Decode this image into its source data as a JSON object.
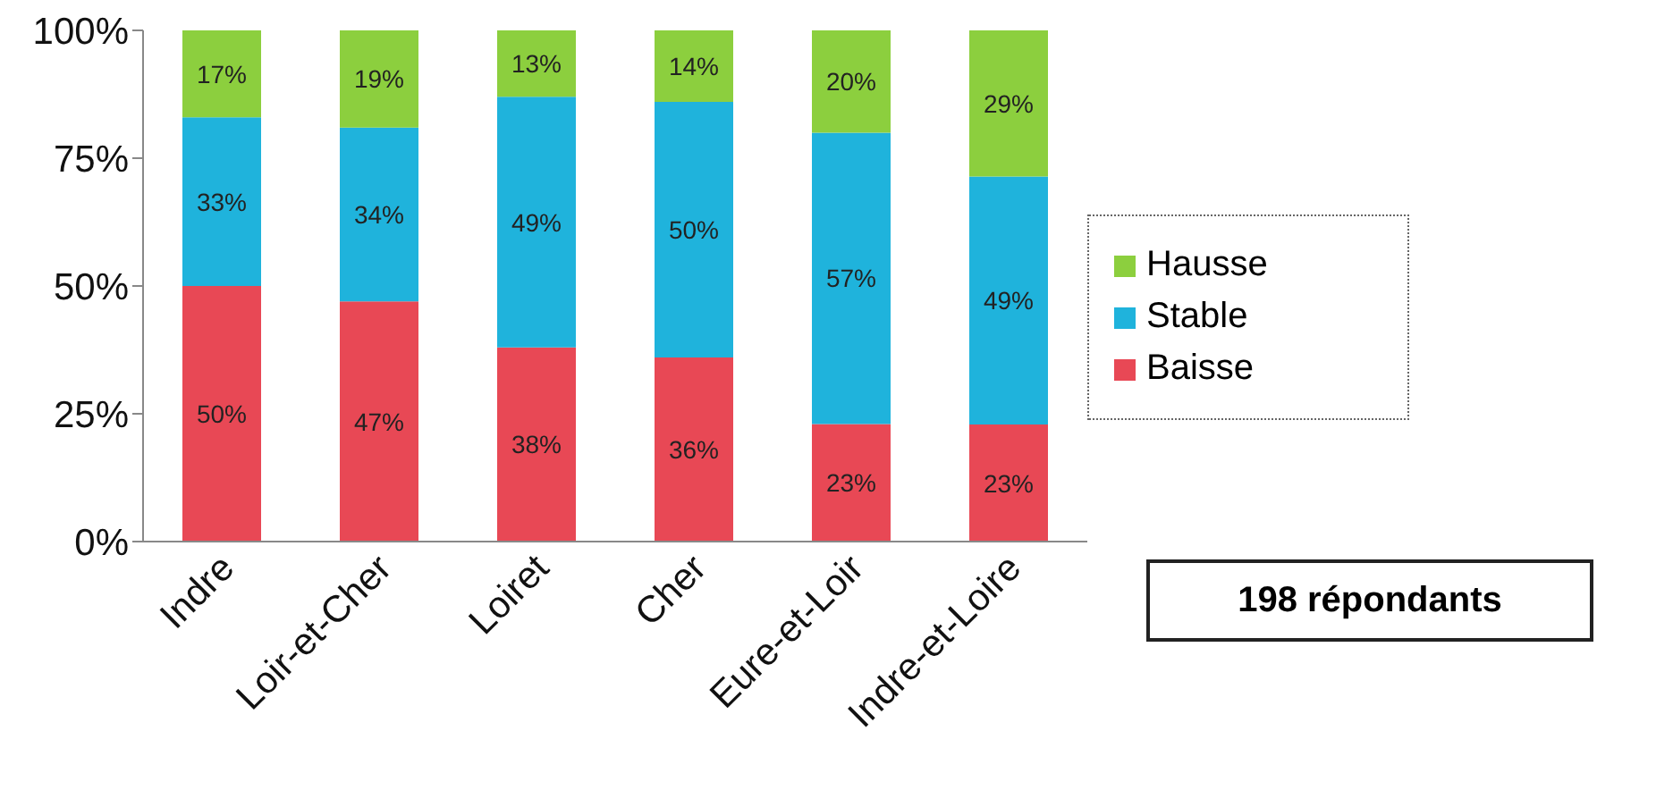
{
  "chart_data": {
    "type": "bar",
    "stacked": true,
    "categories": [
      "Indre",
      "Loir-et-Cher",
      "Loiret",
      "Cher",
      "Eure-et-Loir",
      "Indre-et-Loire"
    ],
    "series": [
      {
        "name": "Baisse",
        "color": "#e84855",
        "values": [
          50,
          47,
          38,
          36,
          23,
          22.9
        ],
        "value_labels": [
          "50%",
          "47%",
          "38%",
          "36%",
          "23%",
          "23%"
        ]
      },
      {
        "name": "Stable",
        "color": "#1fb3dc",
        "values": [
          33,
          34,
          49,
          50,
          57,
          48.5
        ],
        "value_labels": [
          "33%",
          "34%",
          "49%",
          "50%",
          "57%",
          "49%"
        ]
      },
      {
        "name": "Hausse",
        "color": "#8ccf3e",
        "values": [
          17,
          19,
          13,
          14,
          20,
          28.6
        ],
        "value_labels": [
          "17%",
          "19%",
          "13%",
          "14%",
          "20%",
          "29%"
        ]
      }
    ],
    "ylim": [
      0,
      100
    ],
    "yticks": [
      {
        "value": 0,
        "label": "0%"
      },
      {
        "value": 25,
        "label": "25%"
      },
      {
        "value": 50,
        "label": "50%"
      },
      {
        "value": 75,
        "label": "75%"
      },
      {
        "value": 100,
        "label": "100%"
      }
    ],
    "grid": false,
    "legend": "right",
    "annotations": [
      "198 répondants"
    ]
  }
}
